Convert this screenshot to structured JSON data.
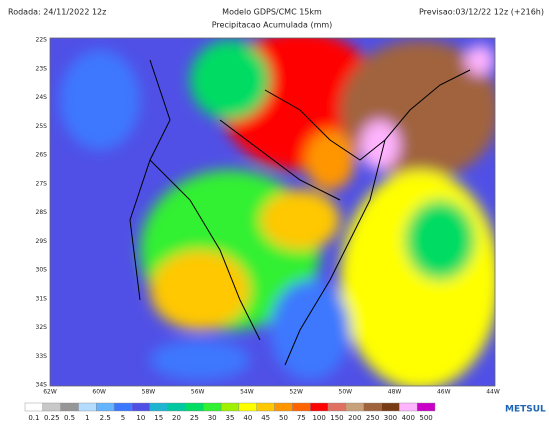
{
  "header": {
    "left": "Rodada: 24/11/2022 12z",
    "center": "Modelo GDPS/CMC 15km",
    "subtitle": "Precipitacao Acumulada (mm)",
    "right": "Previsao:03/12/22 12z (+216h)"
  },
  "latitudes": [
    "22S",
    "23S",
    "24S",
    "25S",
    "26S",
    "27S",
    "28S",
    "29S",
    "30S",
    "31S",
    "32S",
    "33S",
    "34S"
  ],
  "longitudes": [
    "62W",
    "60W",
    "58W",
    "56W",
    "54W",
    "52W",
    "50W",
    "48W",
    "46W",
    "44W"
  ],
  "colorbar": [
    {
      "label": "0.1",
      "color": "#ffffff"
    },
    {
      "label": "0.25",
      "color": "#c8c8c8"
    },
    {
      "label": "0.5",
      "color": "#969696"
    },
    {
      "label": "1",
      "color": "#b4dcff"
    },
    {
      "label": "2.5",
      "color": "#64b4ff"
    },
    {
      "label": "5",
      "color": "#3c78ff"
    },
    {
      "label": "10",
      "color": "#5050e6"
    },
    {
      "label": "15",
      "color": "#1eb4d2"
    },
    {
      "label": "20",
      "color": "#00c8a0"
    },
    {
      "label": "25",
      "color": "#00dc64"
    },
    {
      "label": "30",
      "color": "#32f032"
    },
    {
      "label": "35",
      "color": "#a0f000"
    },
    {
      "label": "40",
      "color": "#ffff00"
    },
    {
      "label": "45",
      "color": "#ffc800"
    },
    {
      "label": "50",
      "color": "#ff9600"
    },
    {
      "label": "75",
      "color": "#ff6400"
    },
    {
      "label": "100",
      "color": "#ff0000"
    },
    {
      "label": "150",
      "color": "#e07060"
    },
    {
      "label": "200",
      "color": "#c8a07a"
    },
    {
      "label": "250",
      "color": "#a0643c"
    },
    {
      "label": "300",
      "color": "#783c14"
    },
    {
      "label": "400",
      "color": "#ffb4ff"
    },
    {
      "label": "500",
      "color": "#c800c8"
    }
  ],
  "logo": "METSUL"
}
